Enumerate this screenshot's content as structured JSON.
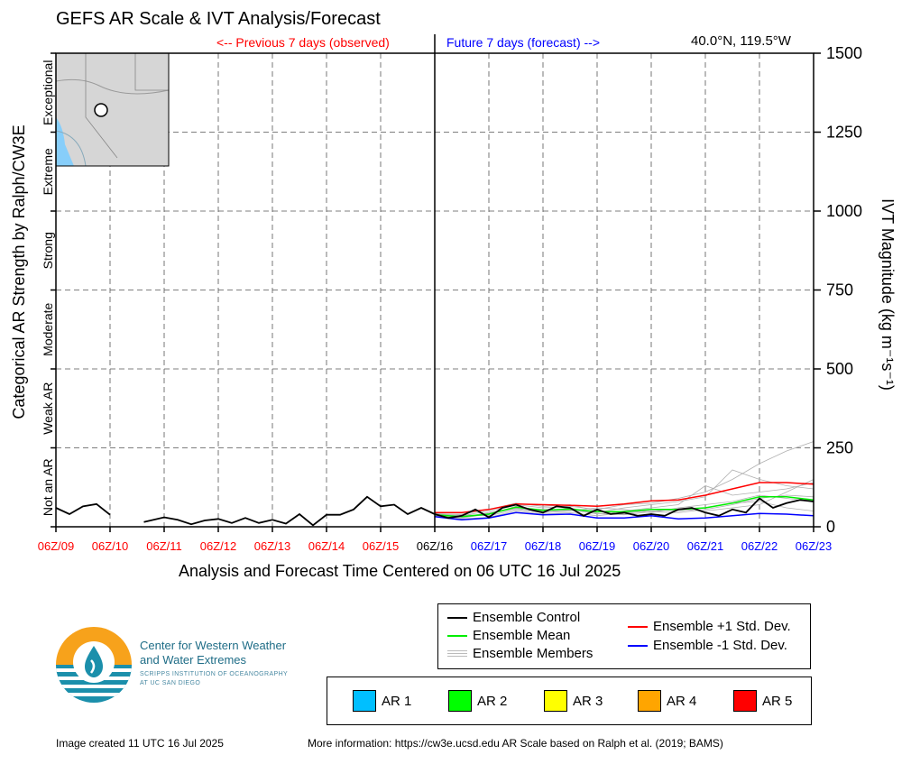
{
  "header": {
    "title": "GEFS AR Scale & IVT Analysis/Forecast",
    "previous_label": "<-- Previous 7 days (observed)",
    "future_label": "Future 7 days (forecast) -->",
    "location": "40.0°N, 119.5°W"
  },
  "chart_data": {
    "type": "line",
    "xlabel": "Analysis and Forecast Time Centered on 06 UTC 16 Jul 2025",
    "ylabel_right": "IVT Magnitude (kg m⁻¹s⁻¹)",
    "ylabel_left": "Categorical AR Strength by Ralph/CW3E",
    "ylim": [
      0,
      1500
    ],
    "yticks": [
      0,
      250,
      500,
      750,
      1000,
      1250,
      1500
    ],
    "ytick_labels": [
      "0",
      "250",
      "500",
      "750",
      "1000",
      "1250",
      "1500"
    ],
    "categories_axis": [
      "Not an AR",
      "Weak AR",
      "Moderate",
      "Strong",
      "Extreme",
      "Exceptional"
    ],
    "xtick_labels": [
      "06Z/09",
      "06Z/10",
      "06Z/11",
      "06Z/12",
      "06Z/13",
      "06Z/14",
      "06Z/15",
      "06Z/16",
      "06Z/17",
      "06Z/18",
      "06Z/19",
      "06Z/20",
      "06Z/21",
      "06Z/22",
      "06Z/23"
    ],
    "xtick_colors": [
      "#ff0000",
      "#ff0000",
      "#ff0000",
      "#ff0000",
      "#ff0000",
      "#ff0000",
      "#ff0000",
      "#000000",
      "#0000ff",
      "#0000ff",
      "#0000ff",
      "#0000ff",
      "#0000ff",
      "#0000ff",
      "#0000ff"
    ],
    "grid": true,
    "xlim_days": [
      0,
      14
    ],
    "analysis_time_day": 7,
    "observed": {
      "name": "Observed",
      "x": [
        0,
        0.25,
        0.5,
        0.75,
        1.0,
        null,
        1.625,
        2.0,
        2.25,
        2.5,
        2.75,
        3.0,
        3.25,
        3.5,
        3.75,
        4.0,
        4.25,
        4.5,
        4.75,
        5.0,
        5.25,
        5.5,
        5.75,
        6.0,
        6.25,
        6.5,
        6.75,
        7.0
      ],
      "y": [
        60,
        40,
        65,
        72,
        38,
        null,
        15,
        30,
        22,
        8,
        20,
        25,
        12,
        28,
        12,
        22,
        10,
        40,
        5,
        38,
        38,
        55,
        95,
        65,
        70,
        40,
        60,
        40
      ]
    },
    "series": [
      {
        "name": "Ensemble Control",
        "color": "#000000",
        "x": [
          7,
          7.25,
          7.5,
          7.75,
          8.0,
          8.25,
          8.5,
          8.75,
          9.0,
          9.25,
          9.5,
          9.75,
          10.0,
          10.25,
          10.5,
          10.75,
          11.0,
          11.25,
          11.5,
          11.75,
          12.0,
          12.25,
          12.5,
          12.75,
          13.0,
          13.25,
          13.5,
          13.75,
          14.0
        ],
        "y": [
          40,
          28,
          35,
          55,
          30,
          60,
          70,
          55,
          45,
          65,
          60,
          35,
          55,
          40,
          45,
          35,
          40,
          35,
          55,
          60,
          45,
          35,
          55,
          45,
          90,
          60,
          75,
          85,
          80
        ]
      },
      {
        "name": "Ensemble Mean",
        "color": "#00ee00",
        "x": [
          7,
          7.5,
          8.0,
          8.5,
          9.0,
          9.5,
          10.0,
          10.5,
          11.0,
          11.5,
          12.0,
          12.5,
          13.0,
          13.5,
          14.0
        ],
        "y": [
          38,
          32,
          40,
          62,
          52,
          56,
          48,
          48,
          55,
          55,
          60,
          75,
          95,
          95,
          85
        ]
      },
      {
        "name": "Ensemble +1 Std. Dev.",
        "color": "#ff0000",
        "x": [
          7,
          7.5,
          8.0,
          8.5,
          9.0,
          9.5,
          10.0,
          10.5,
          11.0,
          11.5,
          12.0,
          12.5,
          13.0,
          13.5,
          14.0
        ],
        "y": [
          45,
          45,
          55,
          72,
          70,
          68,
          65,
          72,
          82,
          85,
          100,
          120,
          140,
          140,
          135
        ]
      },
      {
        "name": "Ensemble -1 Std. Dev.",
        "color": "#0000ff",
        "x": [
          7,
          7.5,
          8.0,
          8.5,
          9.0,
          9.5,
          10.0,
          10.5,
          11.0,
          11.5,
          12.0,
          12.5,
          13.0,
          13.5,
          14.0
        ],
        "y": [
          32,
          22,
          28,
          45,
          38,
          40,
          28,
          28,
          35,
          25,
          28,
          35,
          42,
          40,
          35
        ]
      },
      {
        "name": "Ensemble Members",
        "color": "#b0b0b0",
        "x": [
          7,
          7.5,
          8.0,
          8.5,
          9.0,
          9.5,
          10.0,
          10.5,
          11.0,
          11.5,
          12.0,
          12.5,
          13.0,
          13.5,
          14.0
        ],
        "members": [
          [
            40,
            35,
            50,
            70,
            60,
            65,
            55,
            70,
            75,
            90,
            110,
            150,
            200,
            240,
            270
          ],
          [
            38,
            30,
            45,
            60,
            55,
            55,
            45,
            60,
            70,
            80,
            95,
            180,
            150,
            130,
            120
          ],
          [
            35,
            28,
            40,
            65,
            50,
            60,
            40,
            50,
            60,
            70,
            130,
            100,
            110,
            120,
            140
          ],
          [
            42,
            38,
            35,
            55,
            45,
            50,
            60,
            55,
            45,
            60,
            70,
            80,
            100,
            90,
            80
          ],
          [
            36,
            25,
            30,
            50,
            40,
            45,
            35,
            45,
            50,
            55,
            50,
            60,
            70,
            110,
            150
          ],
          [
            40,
            40,
            55,
            75,
            65,
            70,
            50,
            40,
            55,
            50,
            60,
            75,
            80,
            60,
            50
          ],
          [
            39,
            33,
            42,
            58,
            48,
            52,
            42,
            38,
            48,
            45,
            55,
            70,
            90,
            100,
            95
          ]
        ]
      }
    ]
  },
  "legend": {
    "control": "Ensemble Control",
    "mean": "Ensemble Mean",
    "members": "Ensemble Members",
    "plus": "Ensemble +1 Std. Dev.",
    "minus": "Ensemble -1 Std. Dev."
  },
  "ar_legend": [
    {
      "label": "AR 1",
      "color": "#00bfff"
    },
    {
      "label": "AR 2",
      "color": "#00ff00"
    },
    {
      "label": "AR 3",
      "color": "#ffff00"
    },
    {
      "label": "AR 4",
      "color": "#ffa500"
    },
    {
      "label": "AR 5",
      "color": "#ff0000"
    }
  ],
  "logo": {
    "line1": "Center for Western Weather",
    "line2": "and Water Extremes",
    "line3": "SCRIPPS INSTITUTION OF OCEANOGRAPHY",
    "line4": "AT UC SAN DIEGO"
  },
  "footer": {
    "created": "Image created 11 UTC 16 Jul 2025",
    "info": "More information: https://cw3e.ucsd.edu AR Scale based on Ralph et al. (2019; BAMS)"
  }
}
